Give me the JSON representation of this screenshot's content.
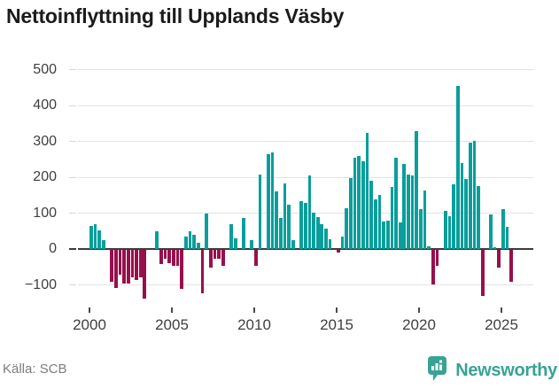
{
  "title": "Nettoinflyttning till Upplands Väsby",
  "footer": {
    "source_label": "Källa: SCB",
    "brand": "Newsworthy"
  },
  "colors": {
    "positive_bar": "#099e9b",
    "negative_bar": "#97104c",
    "brand_teal": "#38a294",
    "grid": "#e2e2e2",
    "zero_line": "#3b3b3b",
    "axis_text": "#3f3f3f",
    "muted_text": "#7d7d7d"
  },
  "chart_data": {
    "type": "bar",
    "title": "Nettoinflyttning till Upplands Väsby",
    "x_frequency": "quarterly",
    "x_start": "2000Q1",
    "x_end": "2025Q3",
    "x_tick_labels": [
      "2000",
      "2005",
      "2010",
      "2015",
      "2020",
      "2025"
    ],
    "y_ticks": [
      500,
      400,
      300,
      200,
      100,
      0,
      -100
    ],
    "ylim": [
      -160,
      520
    ],
    "grid": true,
    "legend": false,
    "values": [
      65,
      70,
      53,
      25,
      0,
      -87,
      -105,
      -69,
      -92,
      -94,
      -76,
      -84,
      -76,
      -136,
      0,
      0,
      50,
      -40,
      -24,
      -36,
      -44,
      -43,
      -108,
      36,
      49,
      41,
      17,
      -120,
      100,
      -49,
      -23,
      -25,
      -45,
      0,
      70,
      31,
      0,
      88,
      0,
      25,
      -45,
      207,
      0,
      265,
      270,
      162,
      88,
      183,
      123,
      25,
      0,
      133,
      129,
      205,
      102,
      89,
      70,
      58,
      27,
      0,
      -8,
      35,
      114,
      198,
      256,
      260,
      244,
      324,
      192,
      138,
      151,
      77,
      81,
      173,
      256,
      74,
      237,
      207,
      205,
      330,
      113,
      164,
      9,
      -95,
      -45,
      0,
      108,
      91,
      182,
      456,
      240,
      195,
      297,
      302,
      176,
      -128,
      0,
      97,
      5,
      -48,
      112,
      63,
      -88
    ]
  }
}
